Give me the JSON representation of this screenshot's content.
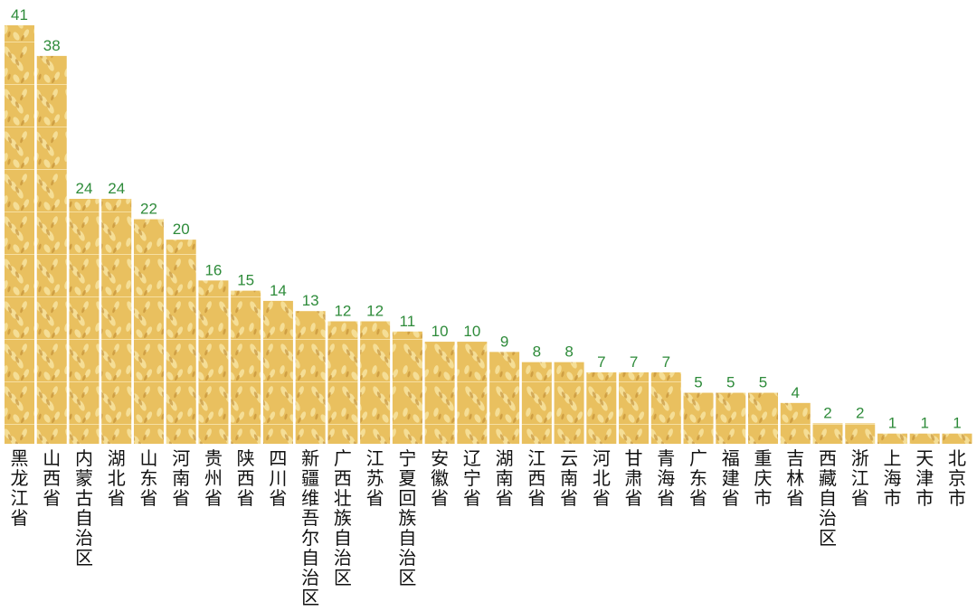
{
  "chart_data": {
    "type": "bar",
    "categories": [
      "黑龙江省",
      "山西省",
      "内蒙古自治区",
      "湖北省",
      "山东省",
      "河南省",
      "贵州省",
      "陕西省",
      "四川省",
      "新疆维吾尔自治区",
      "广西壮族自治区",
      "江苏省",
      "宁夏回族自治区",
      "安徽省",
      "辽宁省",
      "湖南省",
      "江西省",
      "云南省",
      "河北省",
      "甘肃省",
      "青海省",
      "广东省",
      "福建省",
      "重庆市",
      "吉林省",
      "西藏自治区",
      "浙江省",
      "上海市",
      "天津市",
      "北京市"
    ],
    "values": [
      41,
      38,
      24,
      24,
      22,
      20,
      16,
      15,
      14,
      13,
      12,
      12,
      11,
      10,
      10,
      9,
      8,
      8,
      7,
      7,
      7,
      5,
      5,
      5,
      4,
      2,
      2,
      1,
      1,
      1
    ],
    "title": "",
    "xlabel": "",
    "ylabel": "",
    "ylim": [
      0,
      41
    ],
    "grid": false,
    "value_label_color": "#2e8b3a",
    "bar_fill": "wheat-texture"
  }
}
